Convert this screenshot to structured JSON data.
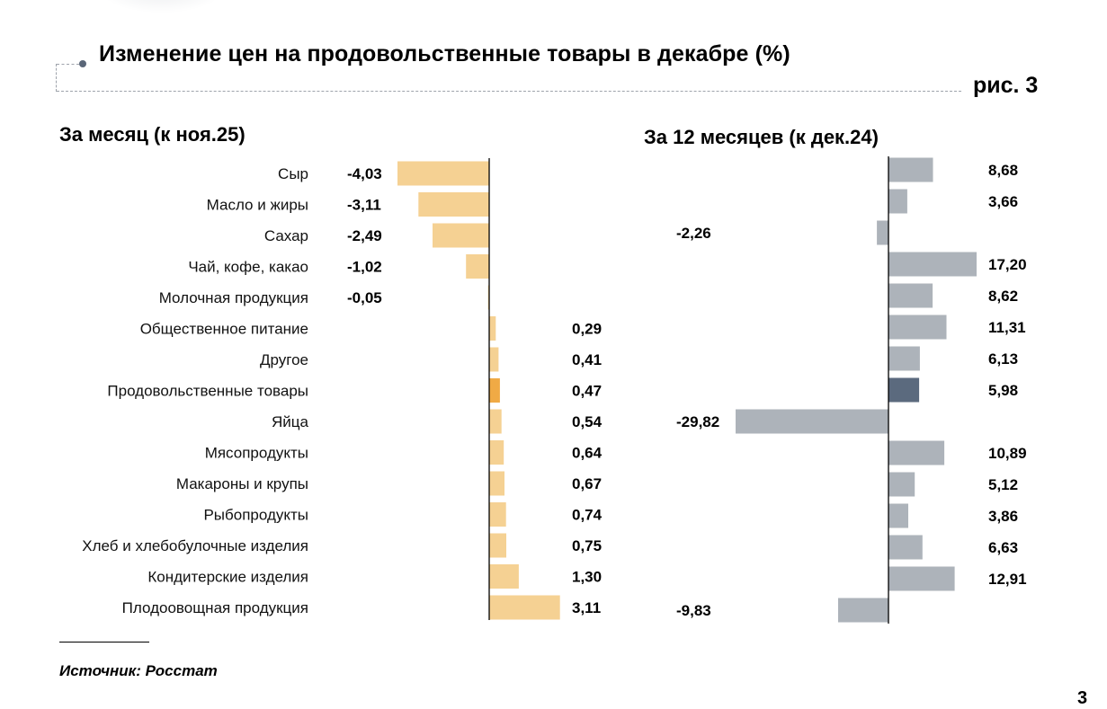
{
  "header": {
    "title": "Изменение цен на продовольственные товары в декабре (%)",
    "figure_label": "рис. 3"
  },
  "footer": {
    "source": "Источник: Росстат",
    "page_number": "3"
  },
  "colors": {
    "monthly_bar": "#f5d193",
    "monthly_highlight": "#f0aa45",
    "annual_bar": "#adb3ba",
    "annual_highlight": "#5b6a7e",
    "axis": "#000000",
    "frame": "#9ea3ab"
  },
  "chart_data": [
    {
      "type": "bar",
      "orientation": "horizontal",
      "title": "За месяц (к ноя.25)",
      "categories": [
        "Сыр",
        "Масло и жиры",
        "Сахар",
        "Чай, кофе, какао",
        "Молочная продукция",
        "Общественное питание",
        "Другое",
        "Продовольственные товары",
        "Яйца",
        "Мясопродукты",
        "Макароны и крупы",
        "Рыбопродукты",
        "Хлеб и хлебобулочные изделия",
        "Кондитерские изделия",
        "Плодоовощная продукция"
      ],
      "values": [
        -4.03,
        -3.11,
        -2.49,
        -1.02,
        -0.05,
        0.29,
        0.41,
        0.47,
        0.54,
        0.64,
        0.67,
        0.74,
        0.75,
        1.3,
        3.11
      ],
      "labels": [
        "-4,03",
        "-3,11",
        "-2,49",
        "-1,02",
        "-0,05",
        "0,29",
        "0,41",
        "0,47",
        "0,54",
        "0,64",
        "0,67",
        "0,74",
        "0,75",
        "1,30",
        "3,11"
      ],
      "highlight_category": "Продовольственные товары",
      "xlim": [
        -4.03,
        4.7
      ],
      "grid": false,
      "xlabel": "",
      "ylabel": ""
    },
    {
      "type": "bar",
      "orientation": "horizontal",
      "title": "За 12 месяцев (к дек.24)",
      "categories": [
        "Сыр",
        "Масло и жиры",
        "Сахар",
        "Чай, кофе, какао",
        "Молочная продукция",
        "Общественное питание",
        "Другое",
        "Продовольственные товары",
        "Яйца",
        "Мясопродукты",
        "Макароны и крупы",
        "Рыбопродукты",
        "Хлеб и хлебобулочные изделия",
        "Кондитерские изделия",
        "Плодоовощная продукция"
      ],
      "values": [
        8.68,
        3.66,
        -2.26,
        17.2,
        8.62,
        11.31,
        6.13,
        5.98,
        -29.82,
        10.89,
        5.12,
        3.86,
        6.63,
        12.91,
        -9.83
      ],
      "labels": [
        "8,68",
        "3,66",
        "-2,26",
        "17,20",
        "8,62",
        "11,31",
        "6,13",
        "5,98",
        "-29,82",
        "10,89",
        "5,12",
        "3,86",
        "6,63",
        "12,91",
        "-9,83"
      ],
      "highlight_category": "Продовольственные товары",
      "xlim": [
        -29.82,
        30
      ],
      "grid": false,
      "xlabel": "",
      "ylabel": ""
    }
  ]
}
